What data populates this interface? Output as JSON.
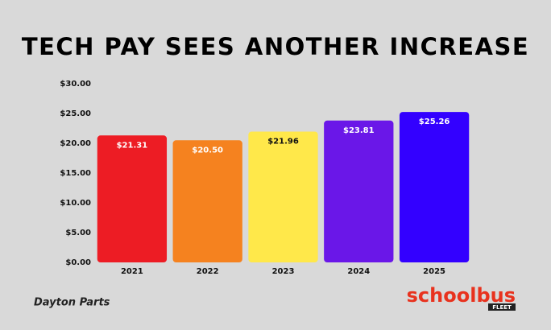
{
  "chart_data": {
    "type": "bar",
    "title": "TECH PAY SEES ANOTHER INCREASE",
    "categories": [
      "2021",
      "2022",
      "2023",
      "2024",
      "2025"
    ],
    "values": [
      21.31,
      20.5,
      21.96,
      23.81,
      25.26
    ],
    "value_labels": [
      "$21.31",
      "$20.50",
      "$21.96",
      "$23.81",
      "$25.26"
    ],
    "colors": [
      "#ed1c24",
      "#f5821f",
      "#ffe84a",
      "#6a17e8",
      "#3300ff"
    ],
    "ylim": [
      0,
      30
    ],
    "yticks": [
      {
        "value": 0,
        "label": "$0.00"
      },
      {
        "value": 5,
        "label": "$5.00"
      },
      {
        "value": 10,
        "label": "$10.00"
      },
      {
        "value": 15,
        "label": "$15.00"
      },
      {
        "value": 20,
        "label": "$20.00"
      },
      {
        "value": 25,
        "label": "$25.00"
      },
      {
        "value": 30,
        "label": "$30.00"
      }
    ],
    "grid": false
  },
  "logos": {
    "left": "Dayton Parts",
    "right_main": "schoolbus",
    "right_sub": "FLEET"
  }
}
